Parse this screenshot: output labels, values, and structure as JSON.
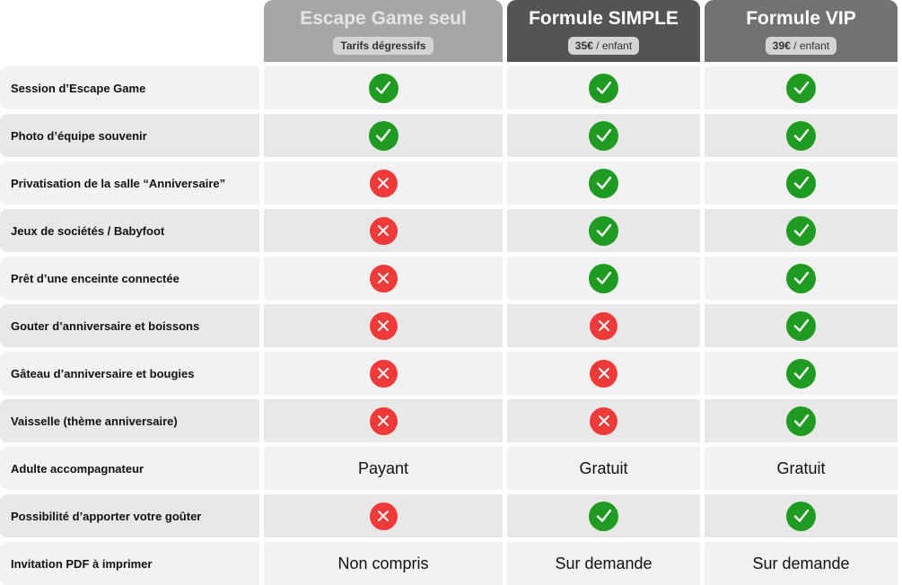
{
  "columns": [
    {
      "title": "Escape Game seul",
      "badge_bold": "Tarifs dégressifs",
      "badge_rest": ""
    },
    {
      "title": "Formule SIMPLE",
      "badge_bold": "35€",
      "badge_rest": " / enfant"
    },
    {
      "title": "Formule VIP",
      "badge_bold": "39€",
      "badge_rest": " / enfant"
    }
  ],
  "colors": {
    "check": "#1f9b22",
    "cross": "#f03a3a"
  },
  "rows": [
    {
      "label": "Session d’Escape Game",
      "values": [
        "check",
        "check",
        "check"
      ]
    },
    {
      "label": "Photo d’équipe souvenir",
      "values": [
        "check",
        "check",
        "check"
      ]
    },
    {
      "label": "Privatisation de la salle “Anniversaire”",
      "values": [
        "cross",
        "check",
        "check"
      ]
    },
    {
      "label": "Jeux de sociétés / Babyfoot",
      "values": [
        "cross",
        "check",
        "check"
      ]
    },
    {
      "label": "Prêt d’une enceinte connectée",
      "values": [
        "cross",
        "check",
        "check"
      ]
    },
    {
      "label": "Gouter d’anniversaire et boissons",
      "values": [
        "cross",
        "cross",
        "check"
      ]
    },
    {
      "label": "Gâteau d’anniversaire et bougies",
      "values": [
        "cross",
        "cross",
        "check"
      ]
    },
    {
      "label": "Vaisselle (thème anniversaire)",
      "values": [
        "cross",
        "cross",
        "check"
      ]
    },
    {
      "label": "Adulte accompagnateur",
      "values": [
        "Payant",
        "Gratuit",
        "Gratuit"
      ]
    },
    {
      "label": "Possibilité d’apporter votre goûter",
      "values": [
        "cross",
        "check",
        "check"
      ]
    },
    {
      "label": "Invitation PDF à imprimer",
      "values": [
        "Non compris",
        "Sur demande",
        "Sur demande"
      ]
    }
  ]
}
